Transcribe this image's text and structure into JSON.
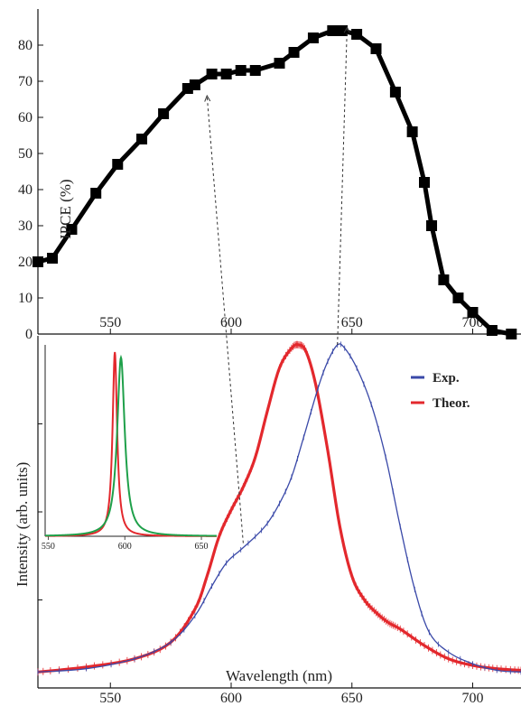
{
  "chart_data": [
    {
      "type": "line",
      "title": "",
      "xlabel": "",
      "ylabel": "IPCE (%)",
      "xlim": [
        520,
        720
      ],
      "ylim": [
        0,
        90
      ],
      "xticks": [
        550,
        600,
        650,
        700
      ],
      "yticks": [
        0,
        10,
        20,
        30,
        40,
        50,
        60,
        70,
        80
      ],
      "grid": false,
      "legend": "none",
      "series": [
        {
          "color": "#000000",
          "marker": "square",
          "points": [
            [
              520,
              20
            ],
            [
              526,
              21
            ],
            [
              534,
              29
            ],
            [
              544,
              39
            ],
            [
              553,
              47
            ],
            [
              563,
              54
            ],
            [
              572,
              61
            ],
            [
              582,
              68
            ],
            [
              585,
              69
            ],
            [
              592,
              72
            ],
            [
              598,
              72
            ],
            [
              604,
              73
            ],
            [
              610,
              73
            ],
            [
              620,
              75
            ],
            [
              626,
              78
            ],
            [
              634,
              82
            ],
            [
              642,
              84
            ],
            [
              646,
              84
            ],
            [
              652,
              83
            ],
            [
              660,
              79
            ],
            [
              668,
              67
            ],
            [
              675,
              56
            ],
            [
              680,
              42
            ],
            [
              683,
              30
            ],
            [
              688,
              15
            ],
            [
              694,
              10
            ],
            [
              700,
              6
            ],
            [
              708,
              1
            ],
            [
              716,
              0
            ]
          ]
        }
      ]
    },
    {
      "type": "line",
      "title": "",
      "xlabel": "Wavelength (nm)",
      "ylabel": "Intensity (arb. units)",
      "xlim": [
        520,
        720
      ],
      "ylim": [
        0,
        1
      ],
      "xticks": [
        550,
        600,
        650,
        700
      ],
      "grid": false,
      "legend": "top-right",
      "series": [
        {
          "name": "Exp.",
          "color": "#3a49a8",
          "points": [
            [
              520,
              0.01
            ],
            [
              540,
              0.02
            ],
            [
              560,
              0.05
            ],
            [
              575,
              0.1
            ],
            [
              585,
              0.18
            ],
            [
              592,
              0.27
            ],
            [
              598,
              0.34
            ],
            [
              604,
              0.38
            ],
            [
              610,
              0.42
            ],
            [
              615,
              0.46
            ],
            [
              620,
              0.52
            ],
            [
              625,
              0.6
            ],
            [
              630,
              0.72
            ],
            [
              636,
              0.87
            ],
            [
              640,
              0.95
            ],
            [
              644,
              1.0
            ],
            [
              647,
              0.99
            ],
            [
              652,
              0.93
            ],
            [
              658,
              0.82
            ],
            [
              664,
              0.66
            ],
            [
              670,
              0.45
            ],
            [
              676,
              0.26
            ],
            [
              682,
              0.13
            ],
            [
              690,
              0.07
            ],
            [
              700,
              0.035
            ],
            [
              710,
              0.015
            ],
            [
              720,
              0.01
            ]
          ]
        },
        {
          "name": "Theor.",
          "color": "#e3282d",
          "points": [
            [
              520,
              0.01
            ],
            [
              540,
              0.025
            ],
            [
              560,
              0.05
            ],
            [
              575,
              0.1
            ],
            [
              585,
              0.2
            ],
            [
              590,
              0.3
            ],
            [
              595,
              0.42
            ],
            [
              600,
              0.5
            ],
            [
              605,
              0.57
            ],
            [
              610,
              0.66
            ],
            [
              615,
              0.8
            ],
            [
              620,
              0.93
            ],
            [
              625,
              0.99
            ],
            [
              628,
              1.0
            ],
            [
              631,
              0.98
            ],
            [
              635,
              0.88
            ],
            [
              640,
              0.68
            ],
            [
              645,
              0.45
            ],
            [
              650,
              0.3
            ],
            [
              655,
              0.23
            ],
            [
              660,
              0.19
            ],
            [
              665,
              0.16
            ],
            [
              670,
              0.14
            ],
            [
              680,
              0.09
            ],
            [
              690,
              0.05
            ],
            [
              700,
              0.03
            ],
            [
              710,
              0.02
            ],
            [
              720,
              0.015
            ]
          ]
        }
      ]
    },
    {
      "type": "line",
      "title": "",
      "xlim": [
        548,
        660
      ],
      "ylim": [
        0,
        1
      ],
      "xticks": [
        550,
        600,
        650
      ],
      "grid": false,
      "legend": "none",
      "series": [
        {
          "color": "#e3282d",
          "center": 593.5,
          "width": 1.8,
          "peak": 1.0
        },
        {
          "color": "#1fa04a",
          "center": 597.5,
          "width": 3.0,
          "peak": 0.97
        }
      ]
    }
  ],
  "annotations": {
    "arrows": [
      {
        "from": [
          605,
          0.4
        ],
        "to": [
          590,
          66
        ]
      },
      {
        "from": [
          644,
          1.0
        ],
        "to": [
          648,
          85
        ]
      }
    ]
  }
}
